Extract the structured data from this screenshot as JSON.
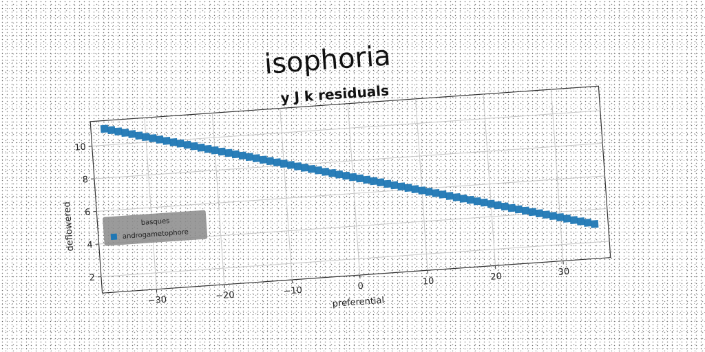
{
  "chart_data": {
    "type": "scatter",
    "title": "isophoria",
    "subtitle": "y J k residuals",
    "xlabel": "preferential",
    "ylabel": "deflowered",
    "xlim": [
      -38,
      37
    ],
    "ylim": [
      1,
      11.5
    ],
    "xticks": [
      -30,
      -20,
      -10,
      0,
      10,
      20,
      30
    ],
    "xtick_labels": [
      "−30",
      "−20",
      "−10",
      "0",
      "10",
      "20",
      "30"
    ],
    "yticks": [
      2,
      4,
      6,
      8,
      10
    ],
    "ytick_labels": [
      "2",
      "4",
      "6",
      "8",
      "10"
    ],
    "grid": true,
    "legend": {
      "title": "basques",
      "position": "center-left",
      "entries": [
        "androgametophore"
      ]
    },
    "series": [
      {
        "name": "androgametophore",
        "color": "#1f77b4",
        "marker": "square",
        "x": [
          -36,
          -35,
          -34,
          -33,
          -32,
          -31,
          -30,
          -29,
          -28,
          -27,
          -26,
          -25,
          -24,
          -23,
          -22,
          -21,
          -20,
          -19,
          -18,
          -17,
          -16,
          -15,
          -14,
          -13,
          -12,
          -11,
          -10,
          -9,
          -8,
          -7,
          -6,
          -5,
          -4,
          -3,
          -2,
          -1,
          0,
          1,
          2,
          3,
          4,
          5,
          6,
          7,
          8,
          9,
          10,
          11,
          12,
          13,
          14,
          15,
          16,
          17,
          18,
          19,
          20,
          21,
          22,
          23,
          24,
          25,
          26,
          27,
          28,
          29,
          30,
          31,
          32,
          33,
          34,
          35
        ],
        "y": [
          11.0,
          10.89,
          10.78,
          10.67,
          10.56,
          10.44,
          10.33,
          10.22,
          10.11,
          10.0,
          9.89,
          9.78,
          9.67,
          9.56,
          9.44,
          9.33,
          9.22,
          9.11,
          9.0,
          8.89,
          8.78,
          8.67,
          8.56,
          8.44,
          8.33,
          8.22,
          8.11,
          8.0,
          7.89,
          7.78,
          7.67,
          7.56,
          7.44,
          7.33,
          7.22,
          7.11,
          7.0,
          6.89,
          6.78,
          6.67,
          6.56,
          6.44,
          6.33,
          6.22,
          6.11,
          6.0,
          5.89,
          5.78,
          5.67,
          5.56,
          5.44,
          5.33,
          5.22,
          5.11,
          5.0,
          4.89,
          4.78,
          4.67,
          4.56,
          4.44,
          4.33,
          4.22,
          4.11,
          4.0,
          3.89,
          3.78,
          3.67,
          3.56,
          3.44,
          3.33,
          3.22,
          3.11
        ]
      }
    ]
  }
}
